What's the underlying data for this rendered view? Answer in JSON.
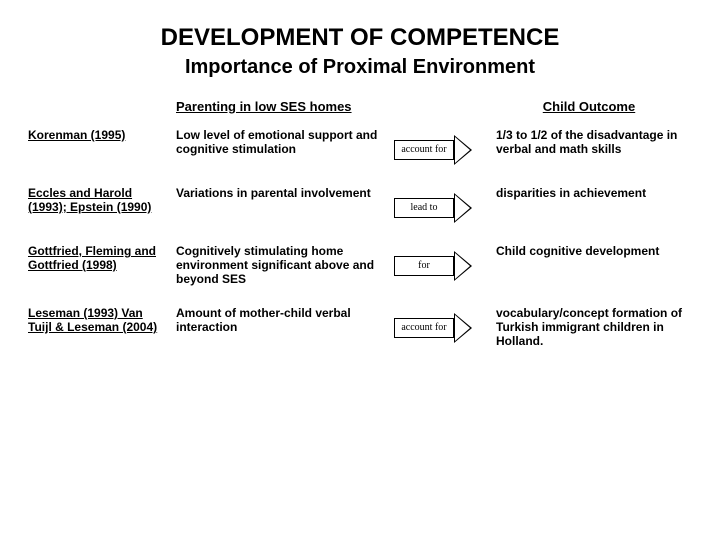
{
  "title": "DEVELOPMENT OF COMPETENCE",
  "subtitle": "Importance of Proximal Environment",
  "headers": {
    "parenting": "Parenting in low SES homes",
    "outcome": "Child Outcome"
  },
  "rows": [
    {
      "author": "Korenman (1995)",
      "parenting": "Low level of emotional support and cognitive stimulation",
      "arrow": "account for",
      "outcome": "1/3 to 1/2 of the disadvantage in verbal and math skills"
    },
    {
      "author": "Eccles and Harold (1993); Epstein (1990)",
      "parenting": "Variations in parental involvement",
      "arrow": "lead to",
      "outcome": "disparities in achievement"
    },
    {
      "author": "Gottfried, Fleming and Gottfried (1998)",
      "parenting": "Cognitively stimulating home environment significant above and beyond SES",
      "arrow": "for",
      "outcome": "Child cognitive development"
    },
    {
      "author": "Leseman (1993) Van Tuijl & Leseman (2004)",
      "parenting": "Amount of mother-child verbal interaction",
      "arrow": "account for",
      "outcome": "vocabulary/concept formation of Turkish immigrant children in Holland."
    }
  ],
  "colors": {
    "background": "#ffffff",
    "text": "#000000",
    "arrow_border": "#000000",
    "arrow_fill": "#ffffff"
  },
  "typography": {
    "title_fontsize": 24,
    "subtitle_fontsize": 20,
    "header_fontsize": 13,
    "body_fontsize": 12,
    "arrow_fontsize": 10
  }
}
